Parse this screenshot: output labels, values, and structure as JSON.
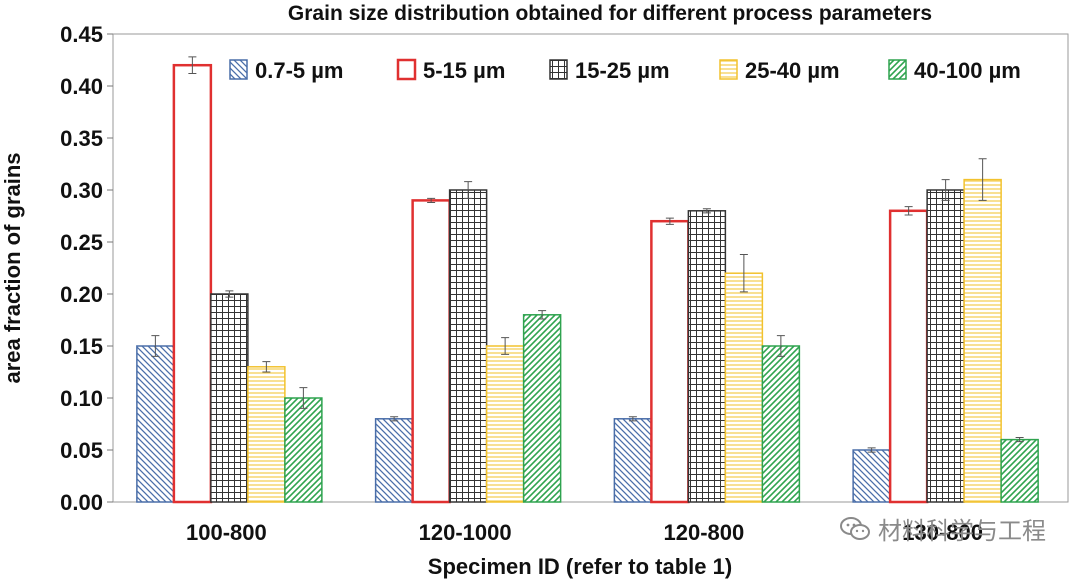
{
  "chart_data": {
    "type": "bar",
    "title": "Grain size distribution obtained for different process parameters",
    "xlabel": "Specimen ID (refer to table 1)",
    "ylabel": "area fraction of grains",
    "ylim": [
      0,
      0.45
    ],
    "yticks": [
      "0.00",
      "0.05",
      "0.10",
      "0.15",
      "0.20",
      "0.25",
      "0.30",
      "0.35",
      "0.40",
      "0.45"
    ],
    "categories": [
      "100-800",
      "120-1000",
      "120-800",
      "130-800"
    ],
    "legend_position": "top",
    "grid": false,
    "series": [
      {
        "name": "0.7-5 µm",
        "values": [
          0.15,
          0.08,
          0.08,
          0.05
        ],
        "errors": [
          0.01,
          0.002,
          0.002,
          0.002
        ],
        "color": "#4a6ea9",
        "pattern": "diag-left"
      },
      {
        "name": "5-15 µm",
        "values": [
          0.42,
          0.29,
          0.27,
          0.28
        ],
        "errors": [
          0.008,
          0.002,
          0.003,
          0.004
        ],
        "color": "#e03030",
        "pattern": "none"
      },
      {
        "name": "15-25 µm",
        "values": [
          0.2,
          0.3,
          0.28,
          0.3
        ],
        "errors": [
          0.003,
          0.008,
          0.002,
          0.01
        ],
        "color": "#333333",
        "pattern": "grid"
      },
      {
        "name": "25-40 µm",
        "values": [
          0.13,
          0.15,
          0.22,
          0.31
        ],
        "errors": [
          0.005,
          0.008,
          0.018,
          0.02
        ],
        "color": "#f2c22e",
        "pattern": "horizontal"
      },
      {
        "name": "40-100 µm",
        "values": [
          0.1,
          0.18,
          0.15,
          0.06
        ],
        "errors": [
          0.01,
          0.004,
          0.01,
          0.002
        ],
        "color": "#2fa34f",
        "pattern": "diag-right"
      }
    ]
  },
  "watermark": {
    "text": "材料科学与工程",
    "icon": "wechat-icon"
  }
}
